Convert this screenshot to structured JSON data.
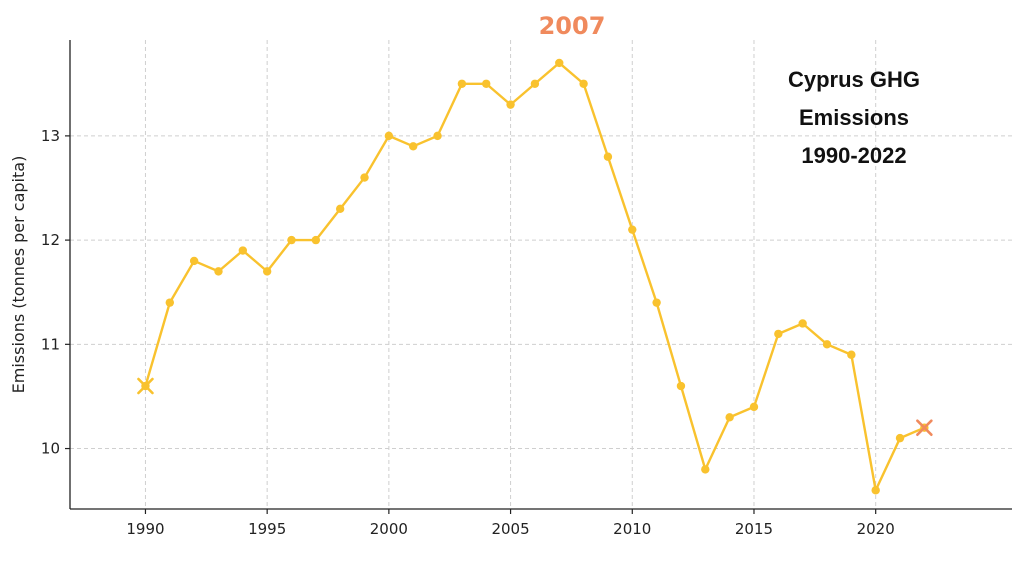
{
  "chart_data": {
    "type": "line",
    "title": "",
    "xlabel": "",
    "ylabel": "Emissions (tonnes per capita)",
    "xlim": [
      1986.9,
      2025.6
    ],
    "ylim": [
      9.42,
      13.92
    ],
    "grid": true,
    "x_ticks": [
      1990,
      1995,
      2000,
      2005,
      2010,
      2015,
      2020
    ],
    "y_ticks": [
      10,
      11,
      12,
      13
    ],
    "x_tick_labels": [
      "1990",
      "1995",
      "2000",
      "2005",
      "2010",
      "2015",
      "2020"
    ],
    "y_tick_labels": [
      "10",
      "11",
      "12",
      "13"
    ],
    "series": [
      {
        "x": [
          1990,
          1991,
          1992,
          1993,
          1994,
          1995,
          1996,
          1997,
          1998,
          1999,
          2000,
          2001,
          2002,
          2003,
          2004,
          2005,
          2006,
          2007,
          2008,
          2009,
          2010,
          2011,
          2012,
          2013,
          2014,
          2015,
          2016,
          2017,
          2018,
          2019,
          2020,
          2021,
          2022
        ],
        "y": [
          10.6,
          11.4,
          11.8,
          11.7,
          11.9,
          11.7,
          12.0,
          12.0,
          12.3,
          12.6,
          13.0,
          12.9,
          13.0,
          13.5,
          13.5,
          13.3,
          13.5,
          13.7,
          13.5,
          12.8,
          12.1,
          11.4,
          10.6,
          9.8,
          10.3,
          10.4,
          11.1,
          11.2,
          11.0,
          10.9,
          9.6,
          10.1,
          10.2
        ],
        "color": "#f9c22e"
      }
    ],
    "start_marker": {
      "x": 1990,
      "y": 10.6,
      "color": "#f9c22e"
    },
    "end_marker": {
      "x": 2022,
      "y": 10.2,
      "color": "#f08a5d"
    },
    "highlight": {
      "label": "2007",
      "color": "#f08a5d"
    },
    "annotation": {
      "lines": [
        "Cyprus GHG",
        "Emissions",
        "1990-2022"
      ]
    }
  }
}
